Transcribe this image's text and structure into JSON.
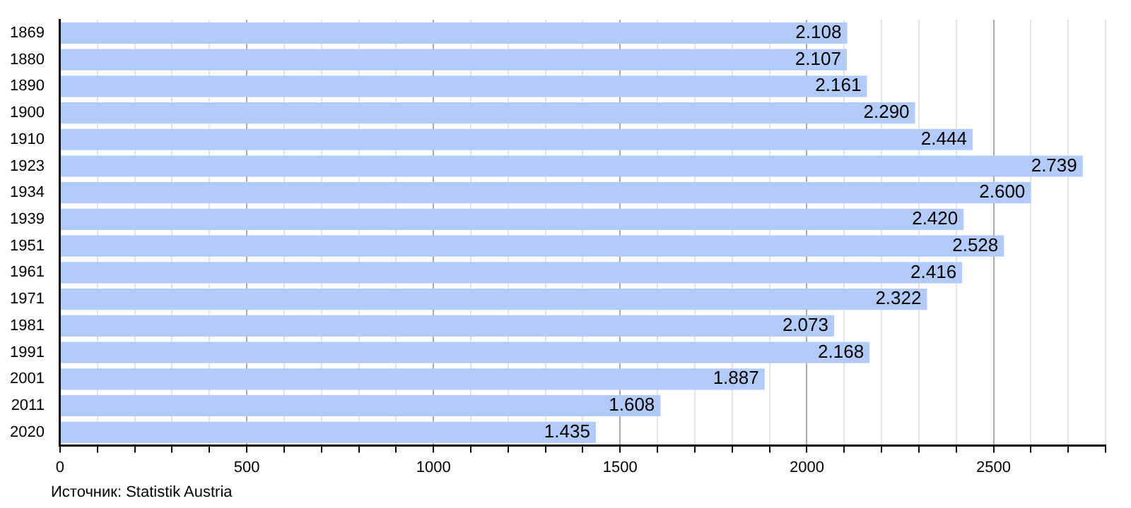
{
  "chart_data": {
    "type": "bar",
    "orientation": "horizontal",
    "categories": [
      "1869",
      "1880",
      "1890",
      "1900",
      "1910",
      "1923",
      "1934",
      "1939",
      "1951",
      "1961",
      "1971",
      "1981",
      "1991",
      "2001",
      "2011",
      "2020"
    ],
    "values": [
      2108,
      2107,
      2161,
      2290,
      2444,
      2739,
      2600,
      2420,
      2528,
      2416,
      2322,
      2073,
      2168,
      1887,
      1608,
      1435
    ],
    "value_labels": [
      "2.108",
      "2.107",
      "2.161",
      "2.290",
      "2.444",
      "2.739",
      "2.600",
      "2.420",
      "2.528",
      "2.416",
      "2.322",
      "2.073",
      "2.168",
      "1.887",
      "1.608",
      "1.435"
    ],
    "color": "#b3cbfa",
    "xlim": [
      0,
      2800
    ],
    "xticks": [
      0,
      {
        "value": 100,
        "label": null
      },
      {
        "value": 200,
        "label": null
      },
      {
        "value": 300,
        "label": null
      },
      {
        "value": 400,
        "label": null
      },
      500,
      {
        "value": 600,
        "label": null
      },
      {
        "value": 700,
        "label": null
      },
      {
        "value": 800,
        "label": null
      },
      {
        "value": 900,
        "label": null
      },
      1000,
      {
        "value": 1100,
        "label": null
      },
      {
        "value": 1200,
        "label": null
      },
      {
        "value": 1300,
        "label": null
      },
      {
        "value": 1400,
        "label": null
      },
      1500,
      {
        "value": 1600,
        "label": null
      },
      {
        "value": 1700,
        "label": null
      },
      {
        "value": 1800,
        "label": null
      },
      {
        "value": 1900,
        "label": null
      },
      2000,
      {
        "value": 2100,
        "label": null
      },
      {
        "value": 2200,
        "label": null
      },
      {
        "value": 2300,
        "label": null
      },
      {
        "value": 2400,
        "label": null
      },
      2500,
      {
        "value": 2600,
        "label": null
      },
      {
        "value": 2700,
        "label": null
      },
      {
        "value": 2800,
        "label": null
      }
    ],
    "grid": "x",
    "annotations": [
      "Источник: Statistik Austria"
    ]
  }
}
